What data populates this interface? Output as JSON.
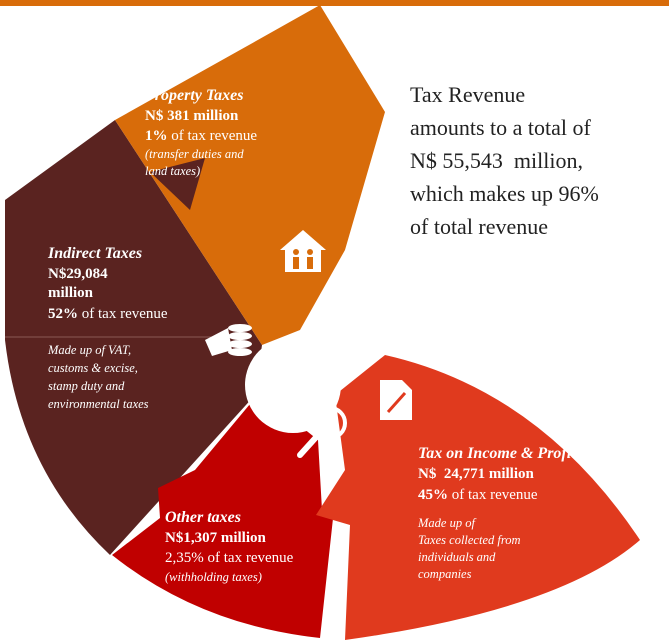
{
  "summary": [
    "Tax Revenue",
    "amounts to a total of",
    "N$ 55,543  million,",
    "which makes up 96%",
    "of total revenue"
  ],
  "segments": [
    {
      "title": "Property Taxes",
      "amount": [
        "N$ 381 million"
      ],
      "share": "1%",
      "share_text": " of tax revenue",
      "note": [
        "(transfer duties and",
        "land taxes)"
      ]
    },
    {
      "title": "Indirect Taxes",
      "amount": [
        "N$29,084",
        "million"
      ],
      "share": "52%",
      "share_text": " of tax revenue",
      "note": [
        "Made up of VAT,",
        "customs & excise,",
        "stamp duty and",
        "environmental taxes"
      ]
    },
    {
      "title": "Tax on Income & Profits",
      "amount": [
        "N$  24,771 million"
      ],
      "share": "45%",
      "share_text": " of tax revenue",
      "note": [
        "Made up of",
        "Taxes collected from",
        "individuals and",
        "companies"
      ]
    },
    {
      "title": "Other taxes",
      "amount": [
        "N$1,307 million"
      ],
      "share": "2,35%",
      "share_text": " of tax revenue",
      "note": [
        "(withholding taxes)"
      ]
    }
  ]
}
